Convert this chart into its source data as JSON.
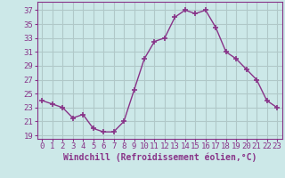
{
  "x": [
    0,
    1,
    2,
    3,
    4,
    5,
    6,
    7,
    8,
    9,
    10,
    11,
    12,
    13,
    14,
    15,
    16,
    17,
    18,
    19,
    20,
    21,
    22,
    23
  ],
  "y": [
    24.0,
    23.5,
    23.0,
    21.5,
    22.0,
    20.0,
    19.5,
    19.5,
    21.0,
    25.5,
    30.0,
    32.5,
    33.0,
    36.0,
    37.0,
    36.5,
    37.0,
    34.5,
    31.0,
    30.0,
    28.5,
    27.0,
    24.0,
    23.0
  ],
  "line_color": "#883388",
  "marker": "+",
  "marker_size": 4,
  "marker_lw": 1.2,
  "bg_color": "#cce8e8",
  "grid_color": "#b0c8c8",
  "xlabel": "Windchill (Refroidissement éolien,°C)",
  "xlabel_color": "#883388",
  "tick_color": "#883388",
  "spine_color": "#883388",
  "ylabel_ticks": [
    19,
    21,
    23,
    25,
    27,
    29,
    31,
    33,
    35,
    37
  ],
  "xlim": [
    -0.5,
    23.5
  ],
  "ylim": [
    18.5,
    38.2
  ],
  "tick_fontsize": 6.5,
  "xlabel_fontsize": 7.0
}
